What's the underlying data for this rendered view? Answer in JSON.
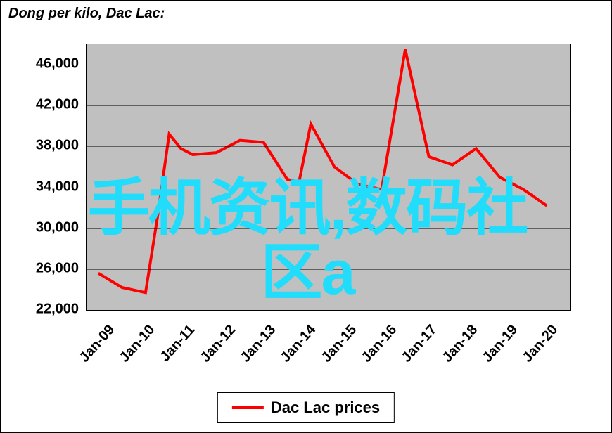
{
  "chart": {
    "type": "line",
    "title": "Dong per kilo, Dac Lac:",
    "title_fontsize": 20,
    "title_style": "bold italic",
    "background_color": "#ffffff",
    "plot_background": "#c0c0c0",
    "border_color": "#000000",
    "grid_color": "#000000",
    "y_axis": {
      "min": 22000,
      "max": 48000,
      "ticks": [
        22000,
        26000,
        30000,
        34000,
        38000,
        42000,
        46000
      ],
      "tick_labels": [
        "22,000",
        "26,000",
        "30,000",
        "34,000",
        "38,000",
        "42,000",
        "46,000"
      ],
      "label_fontsize": 20
    },
    "x_axis": {
      "categories": [
        "Jan-09",
        "Jan-10",
        "Jan-11",
        "Jan-12",
        "Jan-13",
        "Jan-14",
        "Jan-15",
        "Jan-16",
        "Jan-17",
        "Jan-18",
        "Jan-19",
        "Jan-20"
      ],
      "label_fontsize": 20,
      "rotation": -48
    },
    "series": [
      {
        "name": "Dac Lac prices",
        "color": "#ff0000",
        "line_width": 4,
        "data": [
          25600,
          24200,
          23700,
          31000,
          39200,
          37800,
          37200,
          37400,
          38600,
          38400,
          34800,
          34500,
          40200,
          36000,
          34300,
          33800,
          47500,
          37000,
          36200,
          37800,
          35000,
          33800,
          32200
        ],
        "x_positions": [
          0,
          1,
          2,
          2.5,
          3,
          3.5,
          4,
          5,
          6,
          7,
          8,
          8.5,
          9,
          10,
          11,
          12,
          13,
          14,
          15,
          16,
          17,
          18,
          19
        ]
      }
    ],
    "legend": {
      "label": "Dac Lac prices",
      "position": "bottom",
      "fontsize": 22
    }
  },
  "overlay": {
    "line1": "手机资讯,数码社",
    "line2": "区a",
    "color": "#21dcfb",
    "fontsize": 88
  }
}
